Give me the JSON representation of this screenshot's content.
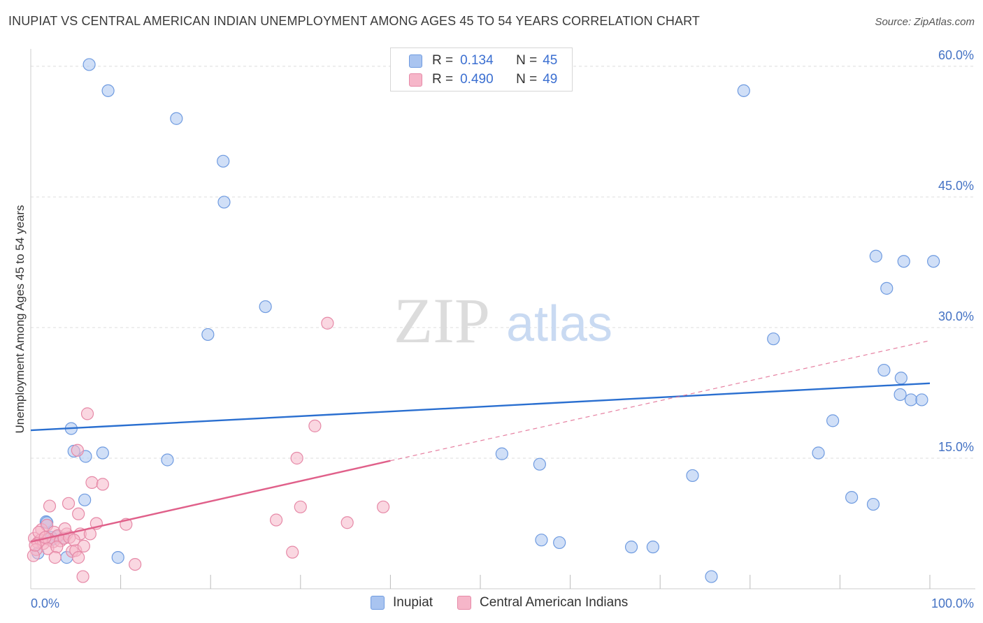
{
  "title": "INUPIAT VS CENTRAL AMERICAN INDIAN UNEMPLOYMENT AMONG AGES 45 TO 54 YEARS CORRELATION CHART",
  "source": "Source: ZipAtlas.com",
  "watermark": {
    "zip": "ZIP",
    "atlas": "atlas"
  },
  "legend": {
    "r_label": "R =",
    "n_label": "N =",
    "rows": [
      {
        "name": "Inupiat",
        "r": "0.134",
        "n": "45",
        "color": "#a9c4f0",
        "stroke": "#6f9be0"
      },
      {
        "name": "Central American Indians",
        "r": "0.490",
        "n": "49",
        "color": "#f6b6c9",
        "stroke": "#e689a7"
      }
    ]
  },
  "chart_data": {
    "type": "scatter",
    "title": "INUPIAT VS CENTRAL AMERICAN INDIAN UNEMPLOYMENT AMONG AGES 45 TO 54 YEARS CORRELATION CHART",
    "xlabel": "",
    "ylabel": "Unemployment Among Ages 45 to 54 years",
    "xlim": [
      0,
      100
    ],
    "ylim": [
      0,
      62
    ],
    "x_ticks_labels": [
      {
        "v": 0,
        "label": "0.0%"
      },
      {
        "v": 100,
        "label": "100.0%"
      }
    ],
    "y_ticks": [
      {
        "v": 15,
        "label": "15.0%"
      },
      {
        "v": 30,
        "label": "30.0%"
      },
      {
        "v": 45,
        "label": "45.0%"
      },
      {
        "v": 60,
        "label": "60.0%"
      }
    ],
    "series": [
      {
        "name": "Inupiat",
        "color": "#a9c4f0",
        "stroke": "#6f9be0",
        "trend": {
          "x0": 0,
          "y0": 18.2,
          "x1": 100,
          "y1": 23.6,
          "color": "#2a6fd0",
          "dashed_extension": false
        },
        "points": [
          [
            6.5,
            60.2
          ],
          [
            8.6,
            57.2
          ],
          [
            16.2,
            54.0
          ],
          [
            21.4,
            49.1
          ],
          [
            21.5,
            44.4
          ],
          [
            26.1,
            32.4
          ],
          [
            19.7,
            29.2
          ],
          [
            4.5,
            18.4
          ],
          [
            4.8,
            15.8
          ],
          [
            6.1,
            15.2
          ],
          [
            8.0,
            15.6
          ],
          [
            15.2,
            14.8
          ],
          [
            6.0,
            10.2
          ],
          [
            1.7,
            7.7
          ],
          [
            1.8,
            7.6
          ],
          [
            2.4,
            5.7
          ],
          [
            3.0,
            6.0
          ],
          [
            3.6,
            5.8
          ],
          [
            0.8,
            4.1
          ],
          [
            4.0,
            3.6
          ],
          [
            9.7,
            3.6
          ],
          [
            79.3,
            57.2
          ],
          [
            94.0,
            38.2
          ],
          [
            97.1,
            37.6
          ],
          [
            100.4,
            37.6
          ],
          [
            95.2,
            34.5
          ],
          [
            82.6,
            28.7
          ],
          [
            94.9,
            25.1
          ],
          [
            96.8,
            24.2
          ],
          [
            96.7,
            22.3
          ],
          [
            97.9,
            21.7
          ],
          [
            99.1,
            21.7
          ],
          [
            89.2,
            19.3
          ],
          [
            87.6,
            15.6
          ],
          [
            52.4,
            15.5
          ],
          [
            56.6,
            14.3
          ],
          [
            73.6,
            13.0
          ],
          [
            91.3,
            10.5
          ],
          [
            93.7,
            9.7
          ],
          [
            56.8,
            5.6
          ],
          [
            58.8,
            5.3
          ],
          [
            66.8,
            4.8
          ],
          [
            69.2,
            4.8
          ],
          [
            75.7,
            1.4
          ],
          [
            2.3,
            5.9
          ]
        ]
      },
      {
        "name": "Central American Indians",
        "color": "#f6b6c9",
        "stroke": "#e689a7",
        "trend": {
          "x0": 0,
          "y0": 5.4,
          "x1": 40,
          "y1": 14.7,
          "ext_x1": 100,
          "ext_y1": 28.5,
          "color": "#e0608a",
          "dashed_extension": true
        },
        "points": [
          [
            33.0,
            30.5
          ],
          [
            6.3,
            20.1
          ],
          [
            31.6,
            18.7
          ],
          [
            5.2,
            15.9
          ],
          [
            29.6,
            15.0
          ],
          [
            6.8,
            12.2
          ],
          [
            8.0,
            12.0
          ],
          [
            2.1,
            9.5
          ],
          [
            4.2,
            9.8
          ],
          [
            5.3,
            8.6
          ],
          [
            30.0,
            9.4
          ],
          [
            39.2,
            9.4
          ],
          [
            27.3,
            7.9
          ],
          [
            35.2,
            7.6
          ],
          [
            10.6,
            7.4
          ],
          [
            7.3,
            7.5
          ],
          [
            1.2,
            6.8
          ],
          [
            1.8,
            7.3
          ],
          [
            2.6,
            6.5
          ],
          [
            3.0,
            6.1
          ],
          [
            4.0,
            6.3
          ],
          [
            5.5,
            6.3
          ],
          [
            6.6,
            6.3
          ],
          [
            0.4,
            5.8
          ],
          [
            0.8,
            5.3
          ],
          [
            1.1,
            5.6
          ],
          [
            1.4,
            5.2
          ],
          [
            2.0,
            5.7
          ],
          [
            2.5,
            5.4
          ],
          [
            3.3,
            5.5
          ],
          [
            3.7,
            5.8
          ],
          [
            4.3,
            5.9
          ],
          [
            0.6,
            4.5
          ],
          [
            1.9,
            4.6
          ],
          [
            2.9,
            4.8
          ],
          [
            4.6,
            4.3
          ],
          [
            5.0,
            4.4
          ],
          [
            5.9,
            4.9
          ],
          [
            0.3,
            3.8
          ],
          [
            2.7,
            3.6
          ],
          [
            5.3,
            3.6
          ],
          [
            11.6,
            2.8
          ],
          [
            29.1,
            4.2
          ],
          [
            5.8,
            1.4
          ],
          [
            0.9,
            6.5
          ],
          [
            1.6,
            5.9
          ],
          [
            3.8,
            6.9
          ],
          [
            0.5,
            5.0
          ],
          [
            4.8,
            5.6
          ]
        ]
      }
    ]
  }
}
